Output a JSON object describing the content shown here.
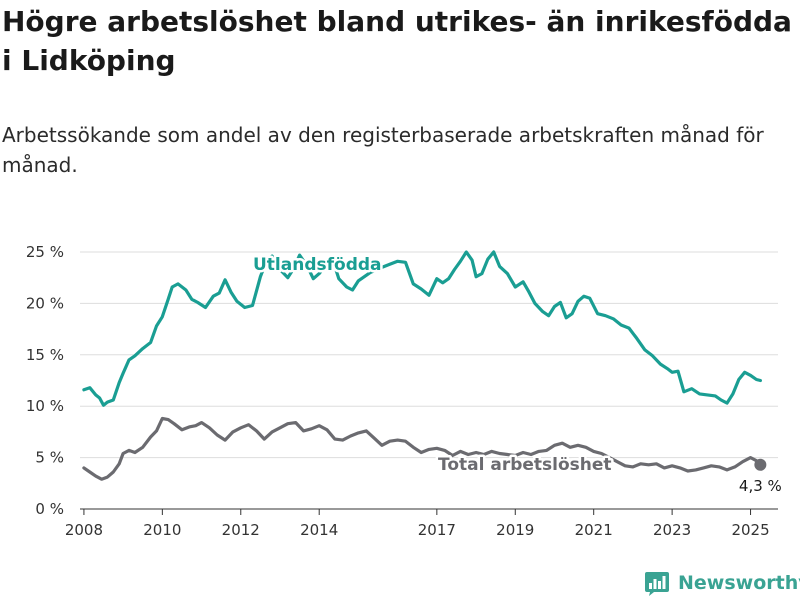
{
  "title": "Högre arbetslöshet bland utrikes- än inrikesfödda i Lidköping",
  "subtitle": "Arbetssökande som andel av den registerbaserade arbetskraften månad för månad.",
  "brand": {
    "name": "Newsworthy"
  },
  "colors": {
    "utlandsfodda": "#1a9e93",
    "total": "#6b6b70",
    "grid": "#dddddd",
    "brand": "#3aa393"
  },
  "chart_data": {
    "type": "line",
    "xlim": [
      2007.9,
      2025.7
    ],
    "ylim": [
      0,
      25
    ],
    "x_ticks": [
      2008,
      2010,
      2012,
      2014,
      2017,
      2019,
      2021,
      2023,
      2025
    ],
    "x_tick_labels": [
      "2008",
      "2010",
      "2012",
      "2014",
      "2017",
      "2019",
      "2021",
      "2023",
      "2025"
    ],
    "y_ticks": [
      0,
      5,
      10,
      15,
      20,
      25
    ],
    "y_tick_labels": [
      "0 %",
      "5 %",
      "10 %",
      "15 %",
      "20 %",
      "25 %"
    ],
    "grid": true,
    "end_annotation": {
      "series": "Total arbetslöshet",
      "x": 2025.25,
      "y": 4.3,
      "label": "4,3 %"
    },
    "series": [
      {
        "name": "Utlandsfödda",
        "x": [
          2008.0,
          2008.15,
          2008.3,
          2008.4,
          2008.5,
          2008.6,
          2008.75,
          2008.9,
          2009.0,
          2009.15,
          2009.3,
          2009.5,
          2009.7,
          2009.85,
          2010.0,
          2010.15,
          2010.25,
          2010.4,
          2010.6,
          2010.75,
          2010.9,
          2011.1,
          2011.3,
          2011.45,
          2011.6,
          2011.75,
          2011.9,
          2012.1,
          2012.3,
          2012.5,
          2012.65,
          2012.8,
          2013.0,
          2013.2,
          2013.35,
          2013.5,
          2013.7,
          2013.85,
          2014.0,
          2014.2,
          2014.35,
          2014.5,
          2014.7,
          2014.85,
          2015.0,
          2015.3,
          2015.6,
          2015.8,
          2016.0,
          2016.2,
          2016.4,
          2016.6,
          2016.8,
          2017.0,
          2017.15,
          2017.3,
          2017.45,
          2017.6,
          2017.75,
          2017.9,
          2018.0,
          2018.15,
          2018.3,
          2018.45,
          2018.6,
          2018.8,
          2019.0,
          2019.2,
          2019.35,
          2019.5,
          2019.7,
          2019.85,
          2020.0,
          2020.15,
          2020.3,
          2020.45,
          2020.6,
          2020.75,
          2020.9,
          2021.1,
          2021.3,
          2021.5,
          2021.7,
          2021.9,
          2022.1,
          2022.3,
          2022.5,
          2022.7,
          2022.9,
          2023.0,
          2023.15,
          2023.3,
          2023.5,
          2023.7,
          2023.9,
          2024.1,
          2024.25,
          2024.4,
          2024.55,
          2024.7,
          2024.85,
          2025.0,
          2025.15,
          2025.25
        ],
        "values": [
          11.6,
          11.8,
          11.1,
          10.8,
          10.1,
          10.4,
          10.6,
          12.3,
          13.2,
          14.5,
          14.9,
          15.6,
          16.2,
          17.8,
          18.7,
          20.4,
          21.6,
          21.9,
          21.3,
          20.4,
          20.1,
          19.6,
          20.7,
          21.0,
          22.3,
          21.1,
          20.2,
          19.6,
          19.8,
          22.6,
          24.1,
          24.6,
          23.3,
          22.5,
          23.4,
          24.7,
          23.6,
          22.4,
          22.9,
          23.9,
          24.2,
          22.4,
          21.6,
          21.3,
          22.2,
          23.0,
          23.5,
          23.8,
          24.1,
          24.0,
          21.9,
          21.4,
          20.8,
          22.4,
          22.0,
          22.4,
          23.3,
          24.1,
          25.0,
          24.2,
          22.6,
          22.9,
          24.3,
          25.0,
          23.6,
          22.9,
          21.6,
          22.1,
          21.1,
          20.0,
          19.2,
          18.8,
          19.7,
          20.1,
          18.6,
          19.0,
          20.2,
          20.7,
          20.5,
          19.0,
          18.8,
          18.5,
          17.9,
          17.6,
          16.6,
          15.5,
          14.9,
          14.1,
          13.6,
          13.3,
          13.4,
          11.4,
          11.7,
          11.2,
          11.1,
          11.0,
          10.6,
          10.3,
          11.2,
          12.6,
          13.3,
          13.0,
          12.6,
          12.5
        ]
      },
      {
        "name": "Total arbetslöshet",
        "x": [
          2008.0,
          2008.15,
          2008.3,
          2008.45,
          2008.6,
          2008.75,
          2008.9,
          2009.0,
          2009.15,
          2009.3,
          2009.5,
          2009.7,
          2009.85,
          2010.0,
          2010.15,
          2010.3,
          2010.5,
          2010.7,
          2010.85,
          2011.0,
          2011.2,
          2011.4,
          2011.6,
          2011.8,
          2012.0,
          2012.2,
          2012.4,
          2012.6,
          2012.8,
          2013.0,
          2013.2,
          2013.4,
          2013.6,
          2013.8,
          2014.0,
          2014.2,
          2014.4,
          2014.6,
          2014.8,
          2015.0,
          2015.2,
          2015.4,
          2015.6,
          2015.8,
          2016.0,
          2016.2,
          2016.4,
          2016.6,
          2016.8,
          2017.0,
          2017.2,
          2017.4,
          2017.6,
          2017.8,
          2018.0,
          2018.2,
          2018.4,
          2018.6,
          2018.8,
          2019.0,
          2019.2,
          2019.4,
          2019.6,
          2019.8,
          2020.0,
          2020.2,
          2020.4,
          2020.6,
          2020.8,
          2021.0,
          2021.2,
          2021.4,
          2021.6,
          2021.8,
          2022.0,
          2022.2,
          2022.4,
          2022.6,
          2022.8,
          2023.0,
          2023.2,
          2023.4,
          2023.6,
          2023.8,
          2024.0,
          2024.2,
          2024.4,
          2024.6,
          2024.8,
          2025.0,
          2025.15,
          2025.25
        ],
        "values": [
          4.0,
          3.6,
          3.2,
          2.9,
          3.1,
          3.6,
          4.4,
          5.4,
          5.7,
          5.5,
          6.0,
          7.0,
          7.6,
          8.8,
          8.7,
          8.3,
          7.7,
          8.0,
          8.1,
          8.4,
          7.9,
          7.2,
          6.7,
          7.5,
          7.9,
          8.2,
          7.6,
          6.8,
          7.5,
          7.9,
          8.3,
          8.4,
          7.6,
          7.8,
          8.1,
          7.7,
          6.8,
          6.7,
          7.1,
          7.4,
          7.6,
          6.9,
          6.2,
          6.6,
          6.7,
          6.6,
          6.0,
          5.5,
          5.8,
          5.9,
          5.7,
          5.2,
          5.6,
          5.3,
          5.5,
          5.3,
          5.6,
          5.4,
          5.3,
          5.2,
          5.5,
          5.3,
          5.6,
          5.7,
          6.2,
          6.4,
          6.0,
          6.2,
          6.0,
          5.6,
          5.4,
          5.0,
          4.6,
          4.2,
          4.1,
          4.4,
          4.3,
          4.4,
          4.0,
          4.2,
          4.0,
          3.7,
          3.8,
          4.0,
          4.2,
          4.1,
          3.8,
          4.1,
          4.6,
          5.0,
          4.7,
          4.3
        ]
      }
    ]
  }
}
